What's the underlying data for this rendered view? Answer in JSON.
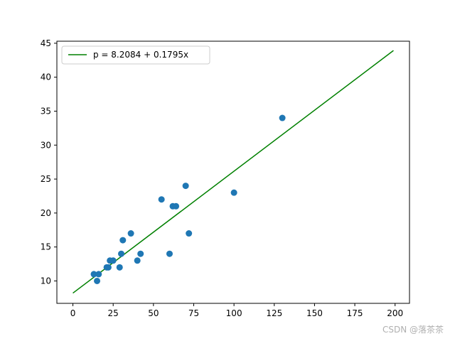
{
  "chart_data": {
    "type": "scatter",
    "points": [
      {
        "x": 13,
        "y": 11
      },
      {
        "x": 15,
        "y": 10
      },
      {
        "x": 16,
        "y": 11
      },
      {
        "x": 21,
        "y": 12
      },
      {
        "x": 22,
        "y": 12
      },
      {
        "x": 23,
        "y": 13
      },
      {
        "x": 25,
        "y": 13
      },
      {
        "x": 29,
        "y": 12
      },
      {
        "x": 30,
        "y": 14
      },
      {
        "x": 31,
        "y": 16
      },
      {
        "x": 36,
        "y": 17
      },
      {
        "x": 40,
        "y": 13
      },
      {
        "x": 42,
        "y": 14
      },
      {
        "x": 55,
        "y": 22
      },
      {
        "x": 60,
        "y": 14
      },
      {
        "x": 62,
        "y": 21
      },
      {
        "x": 64,
        "y": 21
      },
      {
        "x": 70,
        "y": 24
      },
      {
        "x": 72,
        "y": 17
      },
      {
        "x": 100,
        "y": 23
      },
      {
        "x": 130,
        "y": 34
      }
    ],
    "fit_line": {
      "label": "p = 8.2084 + 0.1795x",
      "intercept": 8.2084,
      "slope": 0.1795,
      "x_range": [
        0,
        199
      ],
      "color": "#008000"
    },
    "xlim": [
      -9.95,
      208.95
    ],
    "ylim": [
      6.7,
      45.3
    ],
    "x_ticks": [
      0,
      25,
      50,
      75,
      100,
      125,
      150,
      175,
      200
    ],
    "y_ticks": [
      10,
      15,
      20,
      25,
      30,
      35,
      40,
      45
    ],
    "point_color": "#1f77b4",
    "legend_position": "top-left",
    "grid": false
  },
  "watermark": "CSDN @落茶茶"
}
